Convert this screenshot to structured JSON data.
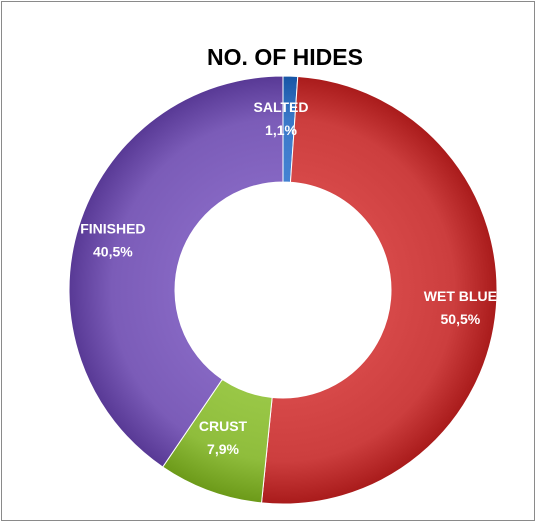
{
  "chart_data": {
    "type": "pie",
    "variant": "doughnut",
    "title": "NO. OF HIDES",
    "legend": "none",
    "slices": [
      {
        "name": "SALTED",
        "value": 1.1,
        "label": "1,1%",
        "color": "#3a78c8"
      },
      {
        "name": "WET BLUE",
        "value": 50.5,
        "label": "50,5%",
        "color": "#cc3e3e"
      },
      {
        "name": "CRUST",
        "value": 7.9,
        "label": "7,9%",
        "color": "#8fbd3c"
      },
      {
        "name": "FINISHED",
        "value": 40.5,
        "label": "40,5%",
        "color": "#7b5cb8"
      }
    ]
  }
}
